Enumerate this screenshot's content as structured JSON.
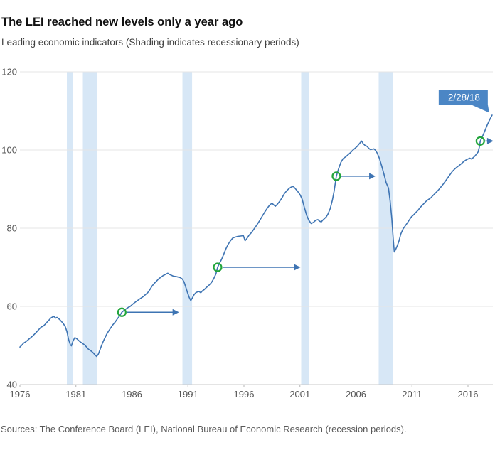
{
  "header": {
    "title": "The LEI reached new levels only a year ago",
    "subtitle": "Leading economic indicators (Shading indicates recessionary periods)"
  },
  "footer": {
    "source": "Sources: The Conference Board (LEI), National Bureau of Economic Research (recession periods)."
  },
  "chart_data": {
    "type": "line",
    "title": "The LEI reached new levels only a year ago",
    "subtitle": "Leading economic indicators (Shading indicates recessionary periods)",
    "xlabel": "",
    "ylabel": "",
    "xlim": [
      1976,
      2018.3
    ],
    "ylim": [
      40,
      120
    ],
    "x_ticks": [
      1976,
      1981,
      1986,
      1991,
      1996,
      2001,
      2006,
      2011,
      2016
    ],
    "y_ticks": [
      40,
      60,
      80,
      100,
      120
    ],
    "grid": "horizontal",
    "legend": "none",
    "recession_bands": [
      [
        1980.19,
        1980.76
      ],
      [
        1981.62,
        1982.89
      ],
      [
        1990.51,
        1991.37
      ],
      [
        2001.11,
        2001.81
      ],
      [
        2008.03,
        2009.33
      ]
    ],
    "markers": [
      {
        "year": 1985.1,
        "value": 58.5,
        "arrow_to_year": 1990.2
      },
      {
        "year": 1993.65,
        "value": 70.0,
        "arrow_to_year": 2001.05
      },
      {
        "year": 2004.25,
        "value": 93.3,
        "arrow_to_year": 2007.75
      },
      {
        "year": 2017.1,
        "value": 102.3,
        "arrow_to_year": 2018.28
      }
    ],
    "callout": {
      "label": "2/28/18",
      "year": 2018.15,
      "value": 108.9
    },
    "series": [
      {
        "name": "Leading economic indicators",
        "points": [
          [
            1976.0,
            49.6
          ],
          [
            1976.17,
            50.1
          ],
          [
            1976.33,
            50.6
          ],
          [
            1976.5,
            50.9
          ],
          [
            1976.67,
            51.3
          ],
          [
            1976.83,
            51.7
          ],
          [
            1977.0,
            52.1
          ],
          [
            1977.2,
            52.6
          ],
          [
            1977.4,
            53.2
          ],
          [
            1977.6,
            53.8
          ],
          [
            1977.75,
            54.3
          ],
          [
            1977.9,
            54.7
          ],
          [
            1978.1,
            55.0
          ],
          [
            1978.25,
            55.4
          ],
          [
            1978.4,
            55.9
          ],
          [
            1978.6,
            56.5
          ],
          [
            1978.75,
            57.0
          ],
          [
            1978.9,
            57.3
          ],
          [
            1979.05,
            57.4
          ],
          [
            1979.2,
            57.0
          ],
          [
            1979.3,
            57.2
          ],
          [
            1979.45,
            56.9
          ],
          [
            1979.6,
            56.5
          ],
          [
            1979.75,
            56.0
          ],
          [
            1979.9,
            55.5
          ],
          [
            1980.05,
            54.8
          ],
          [
            1980.2,
            53.5
          ],
          [
            1980.35,
            51.5
          ],
          [
            1980.5,
            50.2
          ],
          [
            1980.6,
            49.9
          ],
          [
            1980.75,
            51.2
          ],
          [
            1980.9,
            52.0
          ],
          [
            1981.05,
            51.8
          ],
          [
            1981.2,
            51.4
          ],
          [
            1981.35,
            51.0
          ],
          [
            1981.5,
            50.7
          ],
          [
            1981.65,
            50.4
          ],
          [
            1981.8,
            50.1
          ],
          [
            1981.95,
            49.6
          ],
          [
            1982.1,
            49.1
          ],
          [
            1982.25,
            48.8
          ],
          [
            1982.4,
            48.5
          ],
          [
            1982.55,
            48.1
          ],
          [
            1982.7,
            47.6
          ],
          [
            1982.85,
            47.2
          ],
          [
            1983.0,
            47.8
          ],
          [
            1983.15,
            48.9
          ],
          [
            1983.3,
            50.1
          ],
          [
            1983.45,
            51.1
          ],
          [
            1983.6,
            52.0
          ],
          [
            1983.75,
            52.9
          ],
          [
            1983.9,
            53.6
          ],
          [
            1984.1,
            54.5
          ],
          [
            1984.3,
            55.3
          ],
          [
            1984.5,
            56.0
          ],
          [
            1984.7,
            56.8
          ],
          [
            1984.9,
            57.6
          ],
          [
            1985.1,
            58.5
          ],
          [
            1985.3,
            59.0
          ],
          [
            1985.5,
            59.4
          ],
          [
            1985.7,
            59.8
          ],
          [
            1985.85,
            60.0
          ],
          [
            1986.0,
            60.4
          ],
          [
            1986.2,
            60.9
          ],
          [
            1986.4,
            61.3
          ],
          [
            1986.6,
            61.7
          ],
          [
            1986.8,
            62.1
          ],
          [
            1987.0,
            62.5
          ],
          [
            1987.2,
            63.0
          ],
          [
            1987.4,
            63.5
          ],
          [
            1987.6,
            64.3
          ],
          [
            1987.8,
            65.2
          ],
          [
            1988.0,
            65.9
          ],
          [
            1988.2,
            66.5
          ],
          [
            1988.4,
            67.1
          ],
          [
            1988.6,
            67.5
          ],
          [
            1988.8,
            67.9
          ],
          [
            1989.0,
            68.2
          ],
          [
            1989.2,
            68.5
          ],
          [
            1989.35,
            68.2
          ],
          [
            1989.5,
            68.0
          ],
          [
            1989.65,
            67.8
          ],
          [
            1989.8,
            67.7
          ],
          [
            1990.0,
            67.6
          ],
          [
            1990.15,
            67.5
          ],
          [
            1990.3,
            67.4
          ],
          [
            1990.5,
            67.0
          ],
          [
            1990.65,
            66.3
          ],
          [
            1990.8,
            65.0
          ],
          [
            1990.95,
            63.6
          ],
          [
            1991.1,
            62.4
          ],
          [
            1991.25,
            61.5
          ],
          [
            1991.4,
            62.2
          ],
          [
            1991.55,
            63.0
          ],
          [
            1991.7,
            63.5
          ],
          [
            1991.85,
            63.7
          ],
          [
            1992.0,
            63.8
          ],
          [
            1992.15,
            63.5
          ],
          [
            1992.3,
            64.0
          ],
          [
            1992.45,
            64.3
          ],
          [
            1992.6,
            64.7
          ],
          [
            1992.75,
            65.1
          ],
          [
            1992.9,
            65.5
          ],
          [
            1993.1,
            66.1
          ],
          [
            1993.3,
            67.1
          ],
          [
            1993.5,
            68.3
          ],
          [
            1993.65,
            70.0
          ],
          [
            1993.8,
            70.9
          ],
          [
            1994.0,
            72.0
          ],
          [
            1994.2,
            73.4
          ],
          [
            1994.4,
            74.8
          ],
          [
            1994.6,
            75.9
          ],
          [
            1994.8,
            76.8
          ],
          [
            1995.0,
            77.5
          ],
          [
            1995.2,
            77.7
          ],
          [
            1995.45,
            77.9
          ],
          [
            1995.7,
            78.0
          ],
          [
            1995.95,
            78.1
          ],
          [
            1996.1,
            76.8
          ],
          [
            1996.25,
            77.3
          ],
          [
            1996.45,
            78.2
          ],
          [
            1996.65,
            78.8
          ],
          [
            1996.85,
            79.6
          ],
          [
            1997.1,
            80.6
          ],
          [
            1997.35,
            81.7
          ],
          [
            1997.6,
            82.9
          ],
          [
            1997.85,
            84.1
          ],
          [
            1998.1,
            85.2
          ],
          [
            1998.3,
            85.9
          ],
          [
            1998.5,
            86.4
          ],
          [
            1998.65,
            86.0
          ],
          [
            1998.8,
            85.6
          ],
          [
            1999.0,
            86.2
          ],
          [
            1999.2,
            86.9
          ],
          [
            1999.4,
            87.8
          ],
          [
            1999.6,
            88.8
          ],
          [
            1999.8,
            89.5
          ],
          [
            2000.0,
            90.1
          ],
          [
            2000.2,
            90.5
          ],
          [
            2000.4,
            90.7
          ],
          [
            2000.6,
            90.1
          ],
          [
            2000.8,
            89.4
          ],
          [
            2001.0,
            88.6
          ],
          [
            2001.2,
            87.4
          ],
          [
            2001.4,
            85.2
          ],
          [
            2001.6,
            83.3
          ],
          [
            2001.8,
            82.0
          ],
          [
            2002.0,
            81.2
          ],
          [
            2002.2,
            81.5
          ],
          [
            2002.4,
            82.0
          ],
          [
            2002.6,
            82.2
          ],
          [
            2002.75,
            81.8
          ],
          [
            2002.9,
            81.6
          ],
          [
            2003.05,
            82.1
          ],
          [
            2003.2,
            82.5
          ],
          [
            2003.35,
            82.9
          ],
          [
            2003.5,
            83.6
          ],
          [
            2003.7,
            85.0
          ],
          [
            2003.9,
            87.2
          ],
          [
            2004.05,
            89.5
          ],
          [
            2004.25,
            93.3
          ],
          [
            2004.45,
            95.2
          ],
          [
            2004.65,
            96.8
          ],
          [
            2004.85,
            97.8
          ],
          [
            2005.1,
            98.3
          ],
          [
            2005.3,
            98.8
          ],
          [
            2005.5,
            99.3
          ],
          [
            2005.7,
            99.9
          ],
          [
            2005.9,
            100.4
          ],
          [
            2006.1,
            100.9
          ],
          [
            2006.3,
            101.6
          ],
          [
            2006.5,
            102.3
          ],
          [
            2006.65,
            101.6
          ],
          [
            2006.8,
            101.2
          ],
          [
            2007.0,
            100.9
          ],
          [
            2007.15,
            100.4
          ],
          [
            2007.3,
            100.1
          ],
          [
            2007.45,
            100.2
          ],
          [
            2007.6,
            100.3
          ],
          [
            2007.75,
            99.9
          ],
          [
            2007.9,
            99.2
          ],
          [
            2008.1,
            97.8
          ],
          [
            2008.3,
            95.9
          ],
          [
            2008.5,
            93.8
          ],
          [
            2008.7,
            91.6
          ],
          [
            2008.9,
            90.3
          ],
          [
            2009.05,
            87.0
          ],
          [
            2009.2,
            82.5
          ],
          [
            2009.32,
            77.5
          ],
          [
            2009.42,
            73.9
          ],
          [
            2009.55,
            74.6
          ],
          [
            2009.7,
            75.6
          ],
          [
            2009.85,
            76.8
          ],
          [
            2010.0,
            78.5
          ],
          [
            2010.2,
            79.8
          ],
          [
            2010.4,
            80.6
          ],
          [
            2010.6,
            81.4
          ],
          [
            2010.8,
            82.3
          ],
          [
            2010.95,
            82.9
          ],
          [
            2011.1,
            83.3
          ],
          [
            2011.25,
            83.7
          ],
          [
            2011.4,
            84.2
          ],
          [
            2011.55,
            84.6
          ],
          [
            2011.7,
            85.2
          ],
          [
            2011.9,
            85.8
          ],
          [
            2012.1,
            86.4
          ],
          [
            2012.3,
            87.0
          ],
          [
            2012.5,
            87.4
          ],
          [
            2012.7,
            87.8
          ],
          [
            2012.85,
            88.3
          ],
          [
            2013.0,
            88.7
          ],
          [
            2013.2,
            89.3
          ],
          [
            2013.4,
            89.9
          ],
          [
            2013.6,
            90.6
          ],
          [
            2013.8,
            91.3
          ],
          [
            2014.0,
            92.1
          ],
          [
            2014.2,
            92.9
          ],
          [
            2014.4,
            93.7
          ],
          [
            2014.6,
            94.5
          ],
          [
            2014.8,
            95.1
          ],
          [
            2015.0,
            95.6
          ],
          [
            2015.2,
            96.0
          ],
          [
            2015.4,
            96.5
          ],
          [
            2015.6,
            97.0
          ],
          [
            2015.8,
            97.4
          ],
          [
            2016.0,
            97.7
          ],
          [
            2016.15,
            97.9
          ],
          [
            2016.3,
            97.7
          ],
          [
            2016.45,
            98.0
          ],
          [
            2016.6,
            98.4
          ],
          [
            2016.75,
            98.9
          ],
          [
            2016.9,
            99.5
          ],
          [
            2017.0,
            100.6
          ],
          [
            2017.1,
            102.3
          ],
          [
            2017.25,
            103.2
          ],
          [
            2017.4,
            104.2
          ],
          [
            2017.55,
            105.2
          ],
          [
            2017.7,
            106.3
          ],
          [
            2017.85,
            107.2
          ],
          [
            2018.0,
            108.1
          ],
          [
            2018.15,
            108.9
          ]
        ]
      }
    ],
    "colors": {
      "line": "#3e74b3",
      "band": "#d7e7f6",
      "marker": "#23a53c",
      "callout_bg": "#4b86c5",
      "callout_text": "#ffffff",
      "grid": "#e6e6e6",
      "axis": "#c9c9c9",
      "tick": "#b5b5b5",
      "tick_label": "#555555"
    }
  }
}
